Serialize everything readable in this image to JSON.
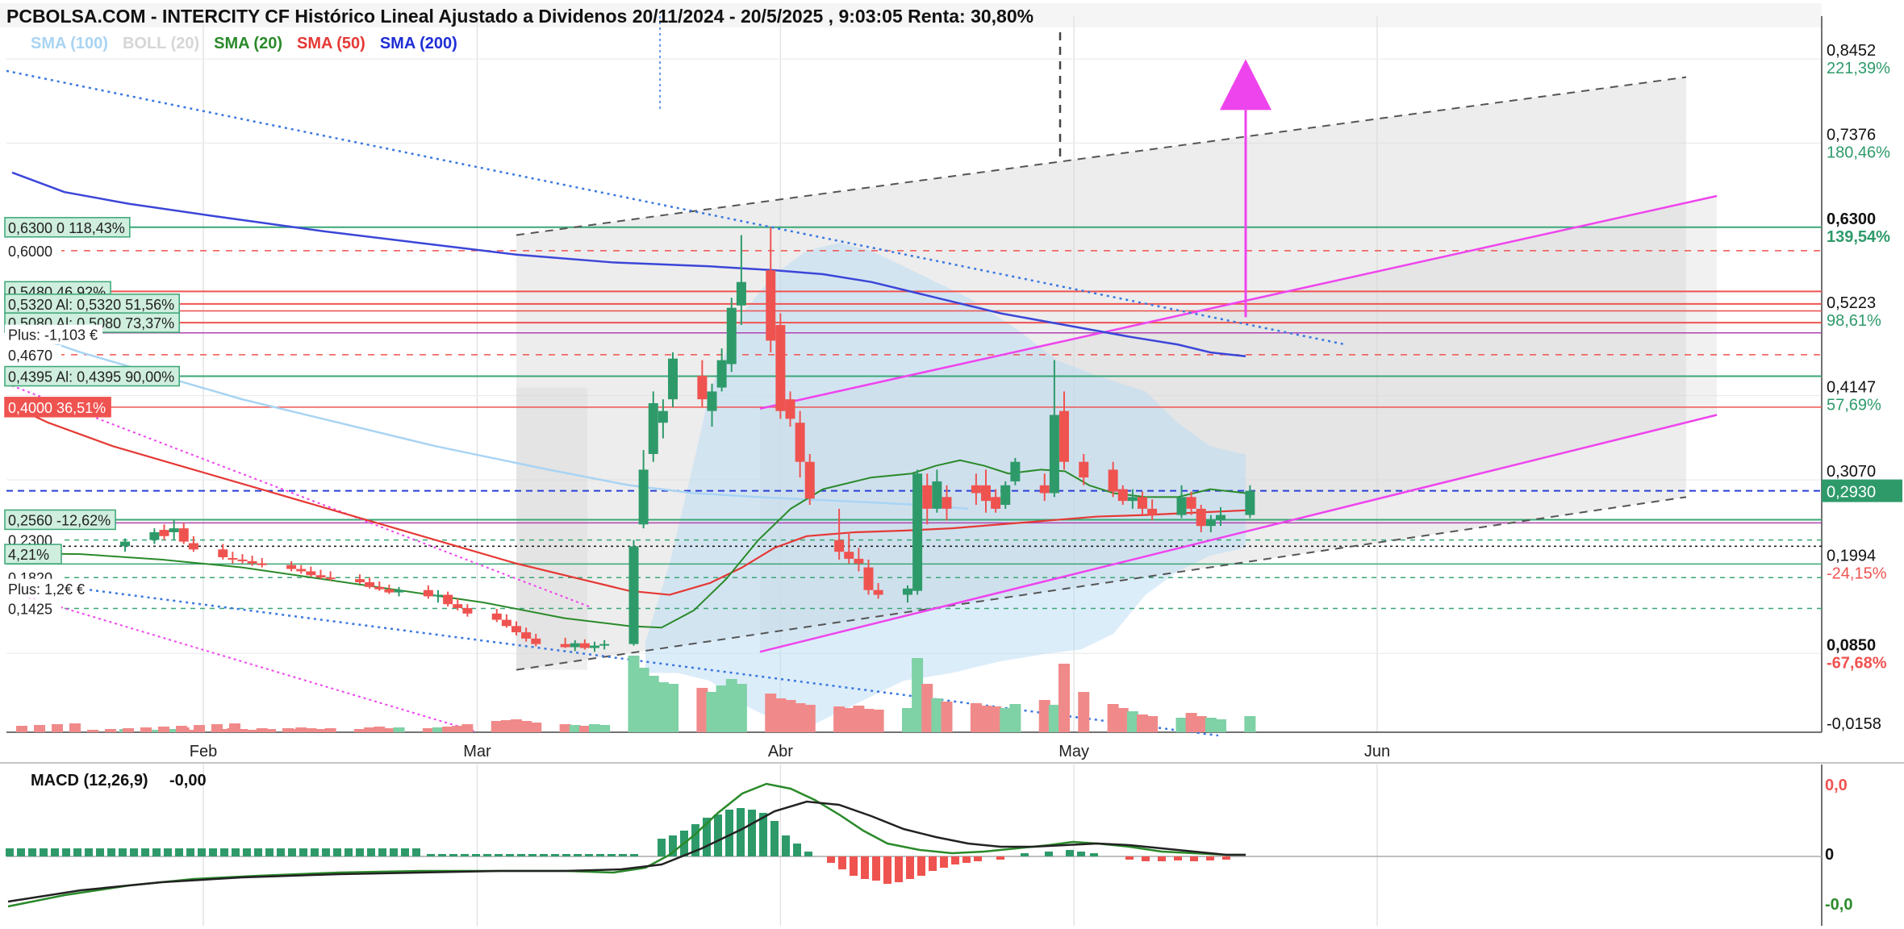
{
  "title": "PCBOLSA.COM - INTERCITY CF Histórico Lineal Ajustado a Dividenos 20/11/2024 - 20/5/2025 , 9:03:05 Renta: 30,80%",
  "legend": [
    {
      "label": "SMA (100)",
      "color": "#a9d4f3"
    },
    {
      "label": "BOLL (20)",
      "color": "#d6d6d6"
    },
    {
      "label": "SMA (20)",
      "color": "#2a8a2a"
    },
    {
      "label": "SMA (50)",
      "color": "#e53935"
    },
    {
      "label": "SMA (200)",
      "color": "#1f2ed6"
    }
  ],
  "macd_label": "MACD (12,26,9)",
  "macd_value": "-0,00",
  "colors": {
    "up": "#2e9a6a",
    "down": "#ef5350",
    "magenta": "#ee44ee",
    "blue_dotted": "#3a78e0",
    "grid": "#e6e6e6"
  },
  "chart_data": {
    "type": "candlestick",
    "x_axis": {
      "ticks": [
        "Feb",
        "Mar",
        "Abr",
        "May",
        "Jun"
      ]
    },
    "y_axis": {
      "scale": "linear",
      "range": [
        -0.0158,
        0.9
      ]
    },
    "right_axis_labels": [
      {
        "price": "0,8452",
        "pct": "221,39%",
        "pct_color": "#2e9a6a"
      },
      {
        "price": "0,7376",
        "pct": "180,46%",
        "pct_color": "#2e9a6a"
      },
      {
        "price": "0,6300",
        "pct": "139,54%",
        "pct_color": "#2e9a6a",
        "bold": true
      },
      {
        "price": "0,5223",
        "pct": "98,61%",
        "pct_color": "#2e9a6a"
      },
      {
        "price": "0,4147",
        "pct": "57,69%",
        "pct_color": "#2e9a6a"
      },
      {
        "price": "0,3070",
        "pct": "",
        "pct_color": "#2e9a6a"
      },
      {
        "price": "0,1994",
        "pct": "-24,15%",
        "pct_color": "#ef5350"
      },
      {
        "price": "0,0850",
        "pct": "-67,68%",
        "pct_color": "#ef5350",
        "bold": true
      },
      {
        "price": "-0,0158",
        "pct": "",
        "pct_color": "#ef5350"
      }
    ],
    "last_price_badge": "0,2930",
    "left_level_labels": [
      {
        "price": "0,6300",
        "text": "0  118,43%",
        "style": "green"
      },
      {
        "price": "0,6000",
        "text": "",
        "style": "plain"
      },
      {
        "price": "0,5480",
        "text": "46,92%",
        "style": "green"
      },
      {
        "price": "0,5320",
        "text": "Al: 0,5320  51,56%",
        "style": "green"
      },
      {
        "price": "0,5080",
        "text": "Al: 0,5080  73,37%",
        "style": "green"
      },
      {
        "price": "",
        "text": "Plus: -1,103 €",
        "style": "plain"
      },
      {
        "price": "0,4670",
        "text": "",
        "style": "plain"
      },
      {
        "price": "0,4395",
        "text": "Al: 0,4395  90,00%",
        "style": "green"
      },
      {
        "price": "0,4000",
        "text": "36,51%",
        "style": "red"
      },
      {
        "price": "0,2560",
        "text": "-12,62%",
        "style": "green"
      },
      {
        "price": "0,2300",
        "text": "",
        "style": "plain"
      },
      {
        "price": "",
        "text": "4,21%",
        "style": "green"
      },
      {
        "price": "0,1820",
        "text": "",
        "style": "plain"
      },
      {
        "price": "",
        "text": "Plus: 1,2€ €",
        "style": "plain"
      },
      {
        "price": "0,1425",
        "text": "",
        "style": "plain"
      }
    ],
    "candles": [
      {
        "date": "2025-01-24",
        "o": 0.222,
        "h": 0.232,
        "l": 0.215,
        "c": 0.228
      },
      {
        "date": "2025-01-27",
        "o": 0.23,
        "h": 0.245,
        "l": 0.225,
        "c": 0.24
      },
      {
        "date": "2025-01-28",
        "o": 0.243,
        "h": 0.25,
        "l": 0.23,
        "c": 0.235
      },
      {
        "date": "2025-01-29",
        "o": 0.24,
        "h": 0.255,
        "l": 0.23,
        "c": 0.245
      },
      {
        "date": "2025-01-30",
        "o": 0.245,
        "h": 0.252,
        "l": 0.225,
        "c": 0.228
      },
      {
        "date": "2025-01-31",
        "o": 0.226,
        "h": 0.235,
        "l": 0.215,
        "c": 0.218
      },
      {
        "date": "2025-02-03",
        "o": 0.218,
        "h": 0.225,
        "l": 0.205,
        "c": 0.208
      },
      {
        "date": "2025-02-04",
        "o": 0.207,
        "h": 0.215,
        "l": 0.2,
        "c": 0.205
      },
      {
        "date": "2025-02-05",
        "o": 0.205,
        "h": 0.212,
        "l": 0.2,
        "c": 0.203
      },
      {
        "date": "2025-02-06",
        "o": 0.203,
        "h": 0.21,
        "l": 0.197,
        "c": 0.2
      },
      {
        "date": "2025-02-07",
        "o": 0.2,
        "h": 0.207,
        "l": 0.195,
        "c": 0.198
      },
      {
        "date": "2025-02-10",
        "o": 0.198,
        "h": 0.203,
        "l": 0.19,
        "c": 0.193
      },
      {
        "date": "2025-02-11",
        "o": 0.193,
        "h": 0.198,
        "l": 0.187,
        "c": 0.19
      },
      {
        "date": "2025-02-12",
        "o": 0.19,
        "h": 0.196,
        "l": 0.183,
        "c": 0.185
      },
      {
        "date": "2025-02-13",
        "o": 0.185,
        "h": 0.192,
        "l": 0.18,
        "c": 0.182
      },
      {
        "date": "2025-02-14",
        "o": 0.182,
        "h": 0.19,
        "l": 0.178,
        "c": 0.18
      },
      {
        "date": "2025-02-17",
        "o": 0.18,
        "h": 0.186,
        "l": 0.174,
        "c": 0.176
      },
      {
        "date": "2025-02-18",
        "o": 0.176,
        "h": 0.182,
        "l": 0.168,
        "c": 0.17
      },
      {
        "date": "2025-02-19",
        "o": 0.17,
        "h": 0.177,
        "l": 0.165,
        "c": 0.167
      },
      {
        "date": "2025-02-20",
        "o": 0.167,
        "h": 0.173,
        "l": 0.161,
        "c": 0.163
      },
      {
        "date": "2025-02-21",
        "o": 0.163,
        "h": 0.17,
        "l": 0.158,
        "c": 0.166
      },
      {
        "date": "2025-02-24",
        "o": 0.166,
        "h": 0.172,
        "l": 0.155,
        "c": 0.158
      },
      {
        "date": "2025-02-25",
        "o": 0.158,
        "h": 0.166,
        "l": 0.15,
        "c": 0.16
      },
      {
        "date": "2025-02-26",
        "o": 0.16,
        "h": 0.164,
        "l": 0.145,
        "c": 0.148
      },
      {
        "date": "2025-02-27",
        "o": 0.148,
        "h": 0.155,
        "l": 0.14,
        "c": 0.143
      },
      {
        "date": "2025-02-28",
        "o": 0.143,
        "h": 0.148,
        "l": 0.132,
        "c": 0.136
      },
      {
        "date": "2025-03-03",
        "o": 0.136,
        "h": 0.142,
        "l": 0.125,
        "c": 0.128
      },
      {
        "date": "2025-03-04",
        "o": 0.128,
        "h": 0.135,
        "l": 0.118,
        "c": 0.12
      },
      {
        "date": "2025-03-05",
        "o": 0.12,
        "h": 0.126,
        "l": 0.108,
        "c": 0.112
      },
      {
        "date": "2025-03-06",
        "o": 0.112,
        "h": 0.118,
        "l": 0.1,
        "c": 0.104
      },
      {
        "date": "2025-03-07",
        "o": 0.104,
        "h": 0.11,
        "l": 0.094,
        "c": 0.097
      },
      {
        "date": "2025-03-10",
        "o": 0.097,
        "h": 0.105,
        "l": 0.092,
        "c": 0.093
      },
      {
        "date": "2025-03-11",
        "o": 0.093,
        "h": 0.102,
        "l": 0.088,
        "c": 0.098
      },
      {
        "date": "2025-03-12",
        "o": 0.098,
        "h": 0.103,
        "l": 0.09,
        "c": 0.092
      },
      {
        "date": "2025-03-13",
        "o": 0.092,
        "h": 0.1,
        "l": 0.087,
        "c": 0.095
      },
      {
        "date": "2025-03-14",
        "o": 0.095,
        "h": 0.102,
        "l": 0.09,
        "c": 0.097
      },
      {
        "date": "2025-03-17",
        "o": 0.097,
        "h": 0.23,
        "l": 0.095,
        "c": 0.222
      },
      {
        "date": "2025-03-18",
        "o": 0.25,
        "h": 0.345,
        "l": 0.245,
        "c": 0.32
      },
      {
        "date": "2025-03-19",
        "o": 0.34,
        "h": 0.42,
        "l": 0.33,
        "c": 0.405
      },
      {
        "date": "2025-03-20",
        "o": 0.38,
        "h": 0.41,
        "l": 0.36,
        "c": 0.395
      },
      {
        "date": "2025-03-21",
        "o": 0.41,
        "h": 0.47,
        "l": 0.4,
        "c": 0.462
      },
      {
        "date": "2025-03-24",
        "o": 0.44,
        "h": 0.46,
        "l": 0.4,
        "c": 0.41
      },
      {
        "date": "2025-03-25",
        "o": 0.395,
        "h": 0.43,
        "l": 0.375,
        "c": 0.42
      },
      {
        "date": "2025-03-26",
        "o": 0.425,
        "h": 0.475,
        "l": 0.42,
        "c": 0.46
      },
      {
        "date": "2025-03-27",
        "o": 0.455,
        "h": 0.54,
        "l": 0.445,
        "c": 0.527
      },
      {
        "date": "2025-03-28",
        "o": 0.53,
        "h": 0.62,
        "l": 0.505,
        "c": 0.56
      },
      {
        "date": "2025-03-31",
        "o": 0.575,
        "h": 0.63,
        "l": 0.47,
        "c": 0.485
      },
      {
        "date": "2025-04-01",
        "o": 0.505,
        "h": 0.52,
        "l": 0.385,
        "c": 0.395
      },
      {
        "date": "2025-04-02",
        "o": 0.41,
        "h": 0.42,
        "l": 0.375,
        "c": 0.385
      },
      {
        "date": "2025-04-03",
        "o": 0.38,
        "h": 0.395,
        "l": 0.31,
        "c": 0.33
      },
      {
        "date": "2025-04-04",
        "o": 0.33,
        "h": 0.34,
        "l": 0.275,
        "c": 0.283
      },
      {
        "date": "2025-04-07",
        "o": 0.23,
        "h": 0.27,
        "l": 0.205,
        "c": 0.215
      },
      {
        "date": "2025-04-08",
        "o": 0.215,
        "h": 0.24,
        "l": 0.2,
        "c": 0.206
      },
      {
        "date": "2025-04-09",
        "o": 0.206,
        "h": 0.22,
        "l": 0.19,
        "c": 0.2
      },
      {
        "date": "2025-04-10",
        "o": 0.195,
        "h": 0.205,
        "l": 0.16,
        "c": 0.166
      },
      {
        "date": "2025-04-11",
        "o": 0.166,
        "h": 0.175,
        "l": 0.155,
        "c": 0.16
      },
      {
        "date": "2025-04-14",
        "o": 0.16,
        "h": 0.172,
        "l": 0.15,
        "c": 0.168
      },
      {
        "date": "2025-04-15",
        "o": 0.165,
        "h": 0.32,
        "l": 0.16,
        "c": 0.315
      },
      {
        "date": "2025-04-16",
        "o": 0.3,
        "h": 0.315,
        "l": 0.25,
        "c": 0.27
      },
      {
        "date": "2025-04-17",
        "o": 0.27,
        "h": 0.32,
        "l": 0.265,
        "c": 0.305
      },
      {
        "date": "2025-04-18",
        "o": 0.285,
        "h": 0.3,
        "l": 0.255,
        "c": 0.27
      },
      {
        "date": "2025-04-21",
        "o": 0.3,
        "h": 0.315,
        "l": 0.275,
        "c": 0.29
      },
      {
        "date": "2025-04-22",
        "o": 0.3,
        "h": 0.32,
        "l": 0.265,
        "c": 0.28
      },
      {
        "date": "2025-04-23",
        "o": 0.285,
        "h": 0.295,
        "l": 0.265,
        "c": 0.27
      },
      {
        "date": "2025-04-24",
        "o": 0.275,
        "h": 0.305,
        "l": 0.27,
        "c": 0.3
      },
      {
        "date": "2025-04-25",
        "o": 0.305,
        "h": 0.335,
        "l": 0.3,
        "c": 0.33
      },
      {
        "date": "2025-04-28",
        "o": 0.3,
        "h": 0.315,
        "l": 0.28,
        "c": 0.29
      },
      {
        "date": "2025-04-29",
        "o": 0.29,
        "h": 0.46,
        "l": 0.285,
        "c": 0.39
      },
      {
        "date": "2025-04-30",
        "o": 0.395,
        "h": 0.42,
        "l": 0.32,
        "c": 0.33
      },
      {
        "date": "2025-05-02",
        "o": 0.33,
        "h": 0.34,
        "l": 0.3,
        "c": 0.31
      },
      {
        "date": "2025-05-05",
        "o": 0.32,
        "h": 0.33,
        "l": 0.285,
        "c": 0.292
      },
      {
        "date": "2025-05-06",
        "o": 0.295,
        "h": 0.3,
        "l": 0.275,
        "c": 0.28
      },
      {
        "date": "2025-05-07",
        "o": 0.28,
        "h": 0.295,
        "l": 0.27,
        "c": 0.285
      },
      {
        "date": "2025-05-08",
        "o": 0.285,
        "h": 0.292,
        "l": 0.262,
        "c": 0.27
      },
      {
        "date": "2025-05-09",
        "o": 0.27,
        "h": 0.282,
        "l": 0.255,
        "c": 0.262
      },
      {
        "date": "2025-05-12",
        "o": 0.262,
        "h": 0.3,
        "l": 0.258,
        "c": 0.285
      },
      {
        "date": "2025-05-13",
        "o": 0.285,
        "h": 0.292,
        "l": 0.262,
        "c": 0.27
      },
      {
        "date": "2025-05-14",
        "o": 0.27,
        "h": 0.275,
        "l": 0.24,
        "c": 0.248
      },
      {
        "date": "2025-05-15",
        "o": 0.248,
        "h": 0.262,
        "l": 0.24,
        "c": 0.255
      },
      {
        "date": "2025-05-16",
        "o": 0.255,
        "h": 0.272,
        "l": 0.248,
        "c": 0.262
      },
      {
        "date": "2025-05-19",
        "o": 0.262,
        "h": 0.3,
        "l": 0.258,
        "c": 0.293
      }
    ]
  }
}
